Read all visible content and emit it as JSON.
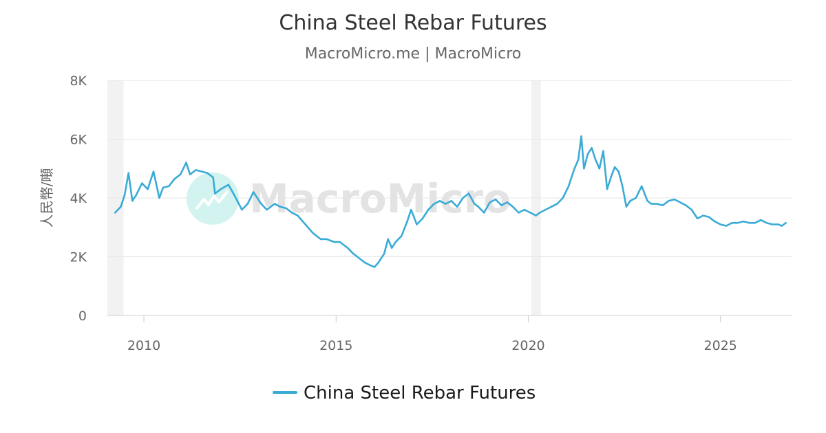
{
  "chart_data": {
    "type": "line",
    "title": "China Steel Rebar Futures",
    "subtitle": "MacroMicro.me | MacroMicro",
    "watermark": "MacroMicro",
    "ylabel": "人民幣/噸",
    "xlabel": "",
    "ylim": [
      0,
      8000
    ],
    "xlim": [
      2009.05,
      2026.85
    ],
    "y_ticks": [
      {
        "value": 0,
        "label": "0"
      },
      {
        "value": 2000,
        "label": "2K"
      },
      {
        "value": 4000,
        "label": "4K"
      },
      {
        "value": 6000,
        "label": "6K"
      },
      {
        "value": 8000,
        "label": "8K"
      }
    ],
    "x_ticks": [
      {
        "value": 2010,
        "label": "2010"
      },
      {
        "value": 2015,
        "label": "2015"
      },
      {
        "value": 2020,
        "label": "2020"
      },
      {
        "value": 2025,
        "label": "2025"
      }
    ],
    "grid": true,
    "legend_position": "bottom",
    "shaded_periods": [
      [
        2009.05,
        2009.47
      ],
      [
        2020.08,
        2020.33
      ]
    ],
    "colors": {
      "series": "#3aabd6",
      "grid": "#e6e6e6",
      "shade": "#f2f2f2"
    },
    "series": [
      {
        "name": "China Steel Rebar Futures",
        "x": [
          2009.25,
          2009.4,
          2009.5,
          2009.6,
          2009.7,
          2009.8,
          2009.95,
          2010.1,
          2010.25,
          2010.4,
          2010.5,
          2010.65,
          2010.8,
          2010.95,
          2011.1,
          2011.2,
          2011.35,
          2011.5,
          2011.65,
          2011.8,
          2011.85,
          2012.0,
          2012.2,
          2012.35,
          2012.55,
          2012.7,
          2012.85,
          2013.05,
          2013.2,
          2013.4,
          2013.55,
          2013.7,
          2013.85,
          2014.0,
          2014.2,
          2014.4,
          2014.6,
          2014.75,
          2014.95,
          2015.1,
          2015.3,
          2015.45,
          2015.6,
          2015.75,
          2015.9,
          2016.0,
          2016.1,
          2016.25,
          2016.35,
          2016.45,
          2016.55,
          2016.7,
          2016.85,
          2016.95,
          2017.1,
          2017.25,
          2017.4,
          2017.55,
          2017.7,
          2017.85,
          2018.0,
          2018.15,
          2018.3,
          2018.45,
          2018.6,
          2018.7,
          2018.85,
          2019.0,
          2019.15,
          2019.3,
          2019.45,
          2019.6,
          2019.75,
          2019.9,
          2020.05,
          2020.2,
          2020.3,
          2020.45,
          2020.6,
          2020.75,
          2020.9,
          2021.05,
          2021.2,
          2021.3,
          2021.38,
          2021.45,
          2021.55,
          2021.65,
          2021.75,
          2021.85,
          2021.95,
          2022.05,
          2022.15,
          2022.25,
          2022.35,
          2022.45,
          2022.55,
          2022.65,
          2022.8,
          2022.95,
          2023.1,
          2023.2,
          2023.35,
          2023.5,
          2023.65,
          2023.8,
          2023.95,
          2024.1,
          2024.25,
          2024.4,
          2024.55,
          2024.7,
          2024.85,
          2025.0,
          2025.15,
          2025.3,
          2025.45,
          2025.6,
          2025.75,
          2025.9,
          2026.05,
          2026.2,
          2026.35,
          2026.5,
          2026.6,
          2026.7
        ],
        "values": [
          3500,
          3700,
          4100,
          4850,
          3900,
          4100,
          4500,
          4300,
          4900,
          4000,
          4350,
          4400,
          4650,
          4800,
          5200,
          4800,
          4950,
          4900,
          4850,
          4700,
          4150,
          4300,
          4450,
          4100,
          3600,
          3800,
          4200,
          3800,
          3600,
          3800,
          3700,
          3650,
          3500,
          3400,
          3100,
          2800,
          2600,
          2600,
          2500,
          2500,
          2300,
          2100,
          1950,
          1800,
          1700,
          1650,
          1800,
          2100,
          2600,
          2300,
          2500,
          2700,
          3200,
          3600,
          3100,
          3300,
          3600,
          3800,
          3900,
          3800,
          3900,
          3700,
          4000,
          4150,
          3800,
          3700,
          3500,
          3850,
          3950,
          3750,
          3850,
          3700,
          3500,
          3600,
          3500,
          3400,
          3500,
          3600,
          3700,
          3800,
          4000,
          4400,
          5000,
          5300,
          6100,
          5000,
          5500,
          5700,
          5300,
          5000,
          5600,
          4300,
          4700,
          5050,
          4900,
          4400,
          3700,
          3900,
          4000,
          4400,
          3900,
          3800,
          3800,
          3750,
          3900,
          3950,
          3850,
          3750,
          3600,
          3300,
          3400,
          3350,
          3200,
          3100,
          3050,
          3150,
          3150,
          3200,
          3150,
          3150,
          3250,
          3150,
          3100,
          3100,
          3050,
          3150
        ]
      }
    ]
  }
}
